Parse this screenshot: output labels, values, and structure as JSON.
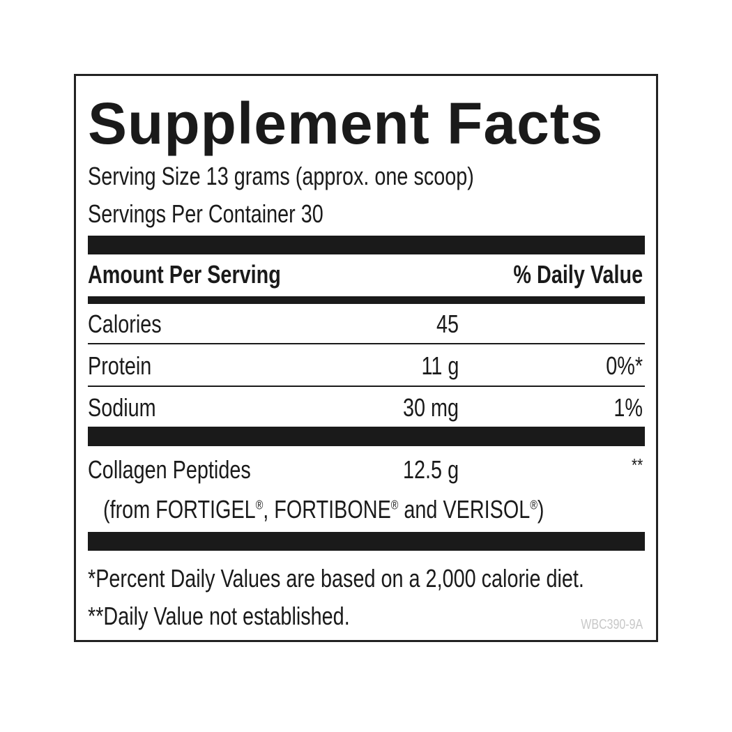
{
  "title": "Supplement Facts",
  "serving_size": "Serving Size 13 grams (approx. one scoop)",
  "servings_per_container": "Servings Per Container 30",
  "header": {
    "amount": "Amount Per Serving",
    "daily_value": "% Daily Value"
  },
  "rows": [
    {
      "name": "Calories",
      "amount": "45",
      "dv": ""
    },
    {
      "name": "Protein",
      "amount": "11 g",
      "dv": "0%*"
    },
    {
      "name": "Sodium",
      "amount": "30 mg",
      "dv": "1%"
    },
    {
      "name": "Collagen Peptides",
      "amount": "12.5 g",
      "dv": "**"
    }
  ],
  "collagen_source": {
    "prefix": "(from FORTIGEL",
    "mid1": ", FORTIBONE",
    "mid2": " and VERISOL",
    "suffix": ")",
    "reg": "®"
  },
  "footnotes": [
    "*Percent Daily Values are based on a 2,000 calorie diet.",
    "**Daily Value not established."
  ],
  "code": "WBC390-9A"
}
